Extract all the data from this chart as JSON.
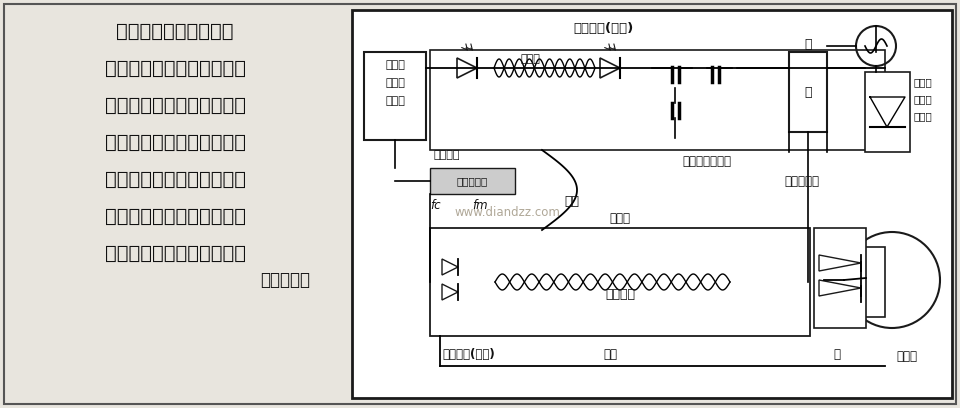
{
  "bg_color": "#d8d4cc",
  "page_bg": "#e8e5de",
  "diagram_bg": "#f0ede8",
  "text_color": "#111111",
  "dark": "#1a1a1a",
  "left_text_lines": [
    "本电路是使用光电耦合",
    "器，对正在运行的电机速度",
    "实施光电控制的电路。因这",
    "种电路分离了电机控制网络",
    "中的机械部件，因而避免了",
    "地回路，保护逻辑电路免受",
    "来自负载的高压瞬态影响。",
    "（穿光炳）"
  ],
  "watermark": "www.diandzz.com"
}
